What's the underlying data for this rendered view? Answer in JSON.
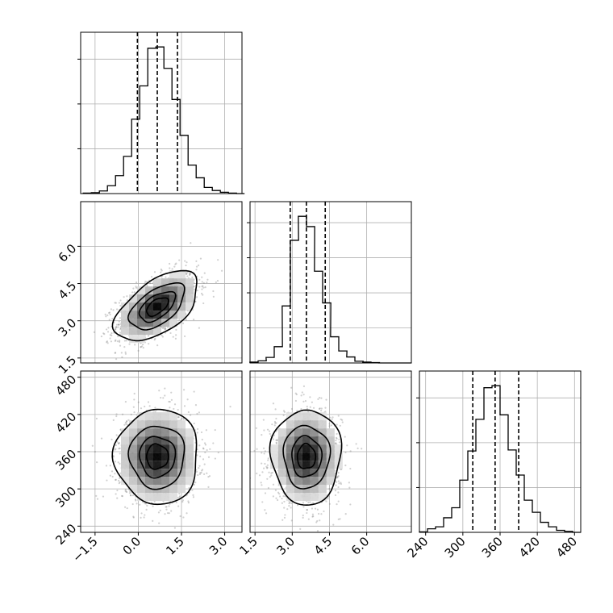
{
  "chart_data": {
    "type": "corner",
    "grid": true,
    "params": [
      {
        "x_ticks": [
          "−1.5",
          "0.0",
          "1.5",
          "3.0"
        ],
        "x_tick_values": [
          -1.5,
          0.0,
          1.5,
          3.0
        ],
        "range": [
          -2.0,
          3.6
        ],
        "quantiles": [
          -0.03,
          0.66,
          1.36
        ],
        "hist_centers": [
          -1.77,
          -1.49,
          -1.21,
          -0.93,
          -0.65,
          -0.37,
          -0.09,
          0.19,
          0.47,
          0.75,
          1.03,
          1.31,
          1.59,
          1.87,
          2.15,
          2.43,
          2.71,
          2.99,
          3.27,
          3.55
        ],
        "hist_counts": [
          1,
          2,
          6,
          18,
          41,
          85,
          170,
          246,
          332,
          335,
          286,
          215,
          133,
          65,
          36,
          14,
          7,
          3,
          1,
          0
        ]
      },
      {
        "y_ticks": [
          "1.5",
          "3.0",
          "4.5",
          "6.0"
        ],
        "x_ticks": [
          "1.5",
          "3.0",
          "4.5",
          "6.0"
        ],
        "tick_values": [
          1.5,
          3.0,
          4.5,
          6.0
        ],
        "range": [
          1.3,
          7.8
        ],
        "quantiles": [
          2.92,
          3.57,
          4.33
        ],
        "hist_centers": [
          1.46,
          1.79,
          2.11,
          2.44,
          2.76,
          3.09,
          3.41,
          3.74,
          4.06,
          4.39,
          4.71,
          5.04,
          5.36,
          5.69,
          6.01,
          6.34,
          6.66,
          6.99,
          7.31,
          7.64
        ],
        "hist_counts": [
          2,
          5,
          13,
          38,
          133,
          286,
          342,
          318,
          214,
          140,
          61,
          28,
          14,
          4,
          2,
          1,
          0,
          0,
          0,
          0
        ]
      },
      {
        "y_ticks": [
          "240",
          "300",
          "360",
          "420",
          "480"
        ],
        "x_ticks": [
          "240",
          "300",
          "360",
          "420",
          "480"
        ],
        "tick_values": [
          240,
          300,
          360,
          420,
          480
        ],
        "range": [
          230,
          490
        ],
        "quantiles": [
          316,
          352,
          390
        ],
        "hist_centers": [
          236.5,
          249.5,
          262.5,
          275.5,
          288.5,
          301.5,
          314.5,
          327.5,
          340.5,
          353.5,
          366.5,
          379.5,
          392.5,
          405.5,
          418.5,
          431.5,
          444.5,
          457.5,
          470.5,
          483.5
        ],
        "hist_counts": [
          1,
          7,
          11,
          29,
          49,
          104,
          162,
          225,
          288,
          292,
          234,
          164,
          114,
          64,
          40,
          20,
          11,
          4,
          2,
          0
        ]
      }
    ],
    "pairs": [
      {
        "x": 0,
        "y": 1,
        "mean": [
          0.66,
          3.57
        ],
        "sd": [
          0.7,
          0.68
        ],
        "rho": 0.55
      },
      {
        "x": 0,
        "y": 2,
        "mean": [
          0.66,
          352
        ],
        "sd": [
          0.7,
          37
        ],
        "rho": 0.0
      },
      {
        "x": 1,
        "y": 2,
        "mean": [
          3.57,
          352
        ],
        "sd": [
          0.68,
          37
        ],
        "rho": 0.0
      }
    ],
    "contour_levels_sigma": [
      0.5,
      1.0,
      1.5,
      2.0
    ],
    "colors": {
      "line": "#000000",
      "grid": "#b0b0b0",
      "points": "#7a7a7a",
      "background": "#ffffff"
    }
  }
}
